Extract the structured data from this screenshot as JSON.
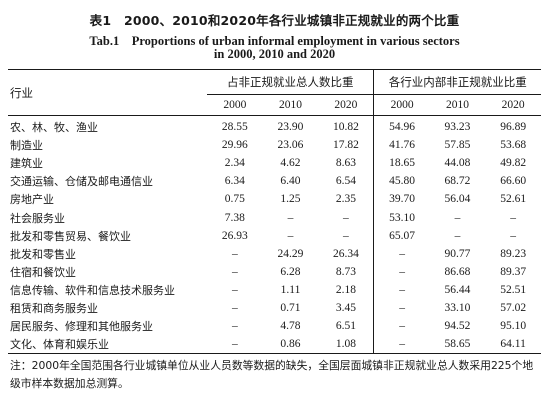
{
  "title": {
    "zh": "表1　2000、2010和2020年各行业城镇非正规就业的两个比重",
    "en_line1": "Tab.1　Proportions of urban informal employment in various sectors",
    "en_line2": "in 2000, 2010 and 2020"
  },
  "table": {
    "row_header": "行业",
    "group_headers": [
      "占非正规就业总人数比重",
      "各行业内部非正规就业比重"
    ],
    "years": [
      "2000",
      "2010",
      "2020",
      "2000",
      "2010",
      "2020"
    ],
    "rows": [
      {
        "name": "农、林、牧、渔业",
        "values": [
          "28.55",
          "23.90",
          "10.82",
          "54.96",
          "93.23",
          "96.89"
        ]
      },
      {
        "name": "制造业",
        "values": [
          "29.96",
          "23.06",
          "17.82",
          "41.76",
          "57.85",
          "53.68"
        ]
      },
      {
        "name": "建筑业",
        "values": [
          "2.34",
          "4.62",
          "8.63",
          "18.65",
          "44.08",
          "49.82"
        ]
      },
      {
        "name": "交通运输、仓储及邮电通信业",
        "values": [
          "6.34",
          "6.40",
          "6.54",
          "45.80",
          "68.72",
          "66.60"
        ]
      },
      {
        "name": "房地产业",
        "values": [
          "0.75",
          "1.25",
          "2.35",
          "39.70",
          "56.04",
          "52.61"
        ]
      },
      {
        "name": "社会服务业",
        "values": [
          "7.38",
          "–",
          "–",
          "53.10",
          "–",
          "–"
        ]
      },
      {
        "name": "批发和零售贸易、餐饮业",
        "values": [
          "26.93",
          "–",
          "–",
          "65.07",
          "–",
          "–"
        ]
      },
      {
        "name": "批发和零售业",
        "values": [
          "–",
          "24.29",
          "26.34",
          "–",
          "90.77",
          "89.23"
        ]
      },
      {
        "name": "住宿和餐饮业",
        "values": [
          "–",
          "6.28",
          "8.73",
          "–",
          "86.68",
          "89.37"
        ]
      },
      {
        "name": "信息传输、软件和信息技术服务业",
        "values": [
          "–",
          "1.11",
          "2.18",
          "–",
          "56.44",
          "52.51"
        ]
      },
      {
        "name": "租赁和商务服务业",
        "values": [
          "–",
          "0.71",
          "3.45",
          "–",
          "33.10",
          "57.02"
        ]
      },
      {
        "name": "居民服务、修理和其他服务业",
        "values": [
          "–",
          "4.78",
          "6.51",
          "–",
          "94.52",
          "95.10"
        ]
      },
      {
        "name": "文化、体育和娱乐业",
        "values": [
          "–",
          "0.86",
          "1.08",
          "–",
          "58.65",
          "64.11"
        ]
      }
    ]
  },
  "note": "注：2000年全国范围各行业城镇单位从业人员数等数据的缺失，全国层面城镇非正规就业总人数采用225个地级市样本数据加总测算。"
}
